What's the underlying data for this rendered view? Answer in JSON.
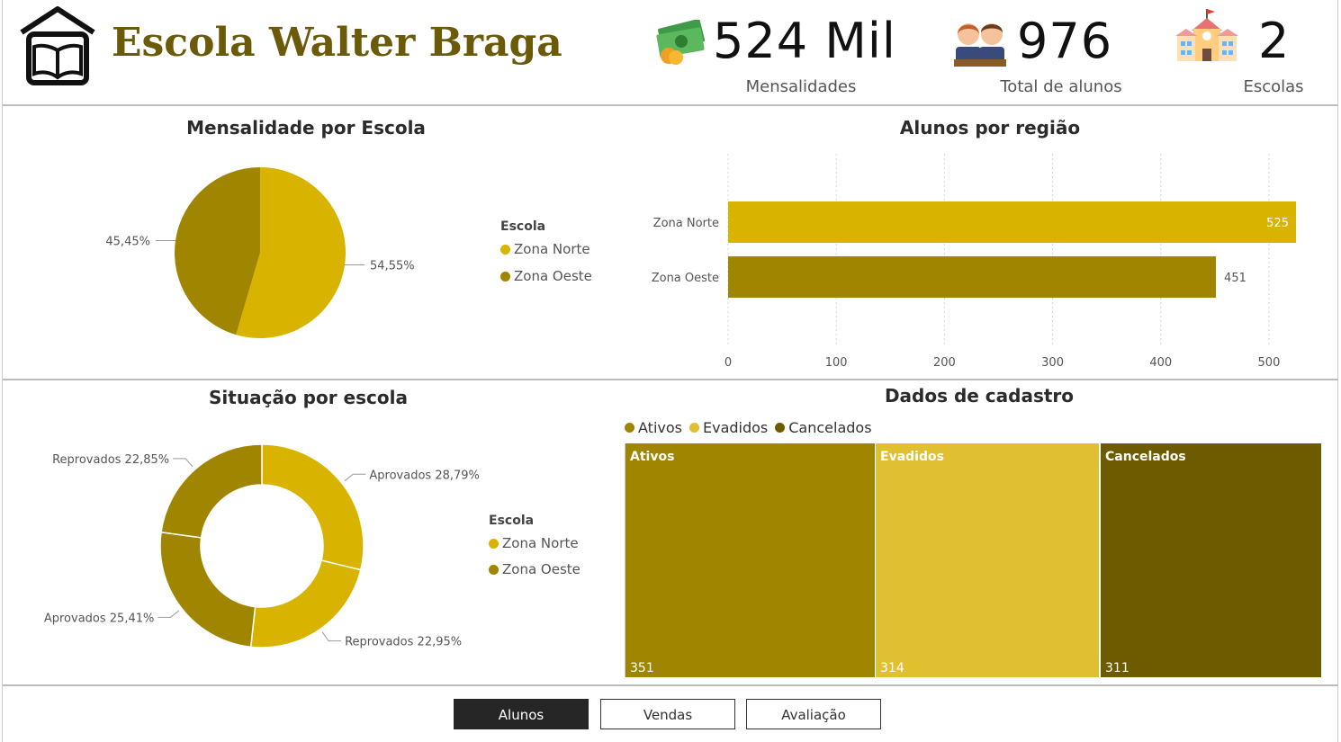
{
  "header": {
    "title": "Escola Walter Braga",
    "kpis": [
      {
        "value": "524 Mil",
        "label": "Mensalidades",
        "icon": "money-icon"
      },
      {
        "value": "976",
        "label": "Total de alunos",
        "icon": "students-icon"
      },
      {
        "value": "2",
        "label": "Escolas",
        "icon": "school-icon"
      }
    ]
  },
  "colors": {
    "zona_norte": "#D8B400",
    "zona_oeste": "#A08500",
    "ativos": "#A08600",
    "evadidos": "#E0C030",
    "cancelados": "#6E5B00",
    "title": "#6B5A07"
  },
  "legend_escola": {
    "title": "Escola",
    "items": [
      "Zona Norte",
      "Zona Oeste"
    ]
  },
  "chart_data": [
    {
      "type": "pie",
      "title": "Mensalidade por Escola",
      "slices": [
        {
          "name": "Zona Norte",
          "value": 54.55,
          "label": "54,55%"
        },
        {
          "name": "Zona Oeste",
          "value": 45.45,
          "label": "45,45%"
        }
      ]
    },
    {
      "type": "bar",
      "orientation": "horizontal",
      "title": "Alunos por região",
      "categories": [
        "Zona Norte",
        "Zona Oeste"
      ],
      "values": [
        525,
        451
      ],
      "xlim": [
        0,
        525
      ],
      "xticks": [
        "0",
        "100",
        "200",
        "300",
        "400",
        "500"
      ],
      "grid": true
    },
    {
      "type": "pie",
      "subtype": "donut",
      "title": "Situação por escola",
      "slices": [
        {
          "series": "Zona Norte",
          "label": "Aprovados 28,79%",
          "value": 28.79
        },
        {
          "series": "Zona Norte",
          "label": "Reprovados 22,95%",
          "value": 22.95
        },
        {
          "series": "Zona Oeste",
          "label": "Aprovados 25,41%",
          "value": 25.41
        },
        {
          "series": "Zona Oeste",
          "label": "Reprovados 22,85%",
          "value": 22.85
        }
      ]
    },
    {
      "type": "treemap",
      "title": "Dados de cadastro",
      "legend": [
        "Ativos",
        "Evadidos",
        "Cancelados"
      ],
      "cells": [
        {
          "name": "Ativos",
          "value": 351
        },
        {
          "name": "Evadidos",
          "value": 314
        },
        {
          "name": "Cancelados",
          "value": 311
        }
      ]
    }
  ],
  "nav": {
    "buttons": [
      {
        "label": "Alunos",
        "active": true
      },
      {
        "label": "Vendas",
        "active": false
      },
      {
        "label": "Avaliação",
        "active": false
      }
    ]
  }
}
